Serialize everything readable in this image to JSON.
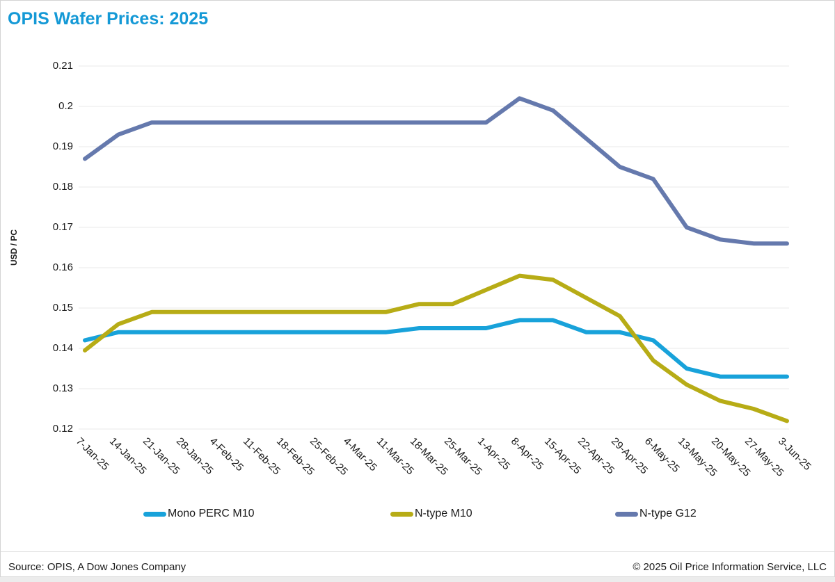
{
  "page": {
    "title": "OPIS Wafer Prices: 2025"
  },
  "footer": {
    "source": "Source: OPIS, A Dow Jones Company",
    "copyright": "© 2025 Oil Price Information Service, LLC"
  },
  "colors": {
    "title": "#1499d6",
    "grid": "#e8e8e8",
    "text": "#1a1a1a",
    "mono_perc_m10": "#18a2da",
    "n_type_m10": "#b7ac16",
    "n_type_g12": "#6579ad"
  },
  "chart_data": {
    "type": "line",
    "title": "OPIS Wafer Prices: 2025",
    "xlabel": "",
    "ylabel": "USD / PC",
    "ylim": [
      0.12,
      0.21
    ],
    "grid": "horizontal",
    "legend_position": "bottom",
    "yticks": [
      {
        "v": 0.21,
        "label": "0.21"
      },
      {
        "v": 0.2,
        "label": "0.2"
      },
      {
        "v": 0.19,
        "label": "0.19"
      },
      {
        "v": 0.18,
        "label": "0.18"
      },
      {
        "v": 0.17,
        "label": "0.17"
      },
      {
        "v": 0.16,
        "label": "0.16"
      },
      {
        "v": 0.15,
        "label": "0.15"
      },
      {
        "v": 0.14,
        "label": "0.14"
      },
      {
        "v": 0.13,
        "label": "0.13"
      },
      {
        "v": 0.12,
        "label": "0.12"
      }
    ],
    "categories": [
      "7-Jan-25",
      "14-Jan-25",
      "21-Jan-25",
      "28-Jan-25",
      "4-Feb-25",
      "11-Feb-25",
      "18-Feb-25",
      "25-Feb-25",
      "4-Mar-25",
      "11-Mar-25",
      "18-Mar-25",
      "25-Mar-25",
      "1-Apr-25",
      "8-Apr-25",
      "15-Apr-25",
      "22-Apr-25",
      "29-Apr-25",
      "6-May-25",
      "13-May-25",
      "20-May-25",
      "27-May-25",
      "3-Jun-25"
    ],
    "series": [
      {
        "name": "Mono PERC M10",
        "color": "#18a2da",
        "values": [
          0.142,
          0.144,
          0.144,
          0.144,
          0.144,
          0.144,
          0.144,
          0.144,
          0.144,
          0.144,
          0.145,
          0.145,
          0.145,
          0.147,
          0.147,
          0.144,
          0.144,
          0.142,
          0.135,
          0.133,
          0.133,
          0.133
        ]
      },
      {
        "name": "N-type M10",
        "color": "#b7ac16",
        "values": [
          0.1395,
          0.146,
          0.149,
          0.149,
          0.149,
          0.149,
          0.149,
          0.149,
          0.149,
          0.149,
          0.151,
          0.151,
          0.1545,
          0.158,
          0.157,
          0.1525,
          0.148,
          0.137,
          0.131,
          0.127,
          0.125,
          0.122
        ]
      },
      {
        "name": "N-type G12",
        "color": "#6579ad",
        "values": [
          0.187,
          0.193,
          0.196,
          0.196,
          0.196,
          0.196,
          0.196,
          0.196,
          0.196,
          0.196,
          0.196,
          0.196,
          0.196,
          0.202,
          0.199,
          0.192,
          0.185,
          0.182,
          0.17,
          0.167,
          0.166,
          0.166
        ]
      }
    ]
  }
}
